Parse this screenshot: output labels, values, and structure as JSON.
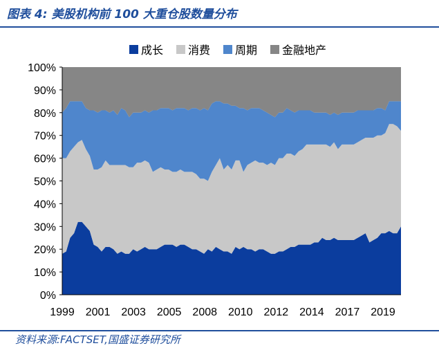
{
  "header": {
    "title": "图表 4:  美股机构前 100 大重仓股数量分布"
  },
  "footer": {
    "source": "资料来源:FACTSET,国盛证券研究所"
  },
  "colors": {
    "growth": "#0b3d9e",
    "consumer": "#c8c8c8",
    "cyclical": "#4f86cc",
    "financial_realestate": "#868686",
    "accent": "#1f4e9c"
  },
  "chart_data": {
    "type": "area",
    "stacked": true,
    "normalized": true,
    "x_tick_labels": [
      "1999",
      "2001",
      "2003",
      "2005",
      "2008",
      "2010",
      "2012",
      "2014",
      "2017",
      "2019"
    ],
    "y_tick_labels": [
      "0%",
      "10%",
      "20%",
      "30%",
      "40%",
      "50%",
      "60%",
      "70%",
      "80%",
      "90%",
      "100%"
    ],
    "ylim": [
      0,
      100
    ],
    "legend_position": "top",
    "series": [
      {
        "name": "成长",
        "color_key": "growth",
        "values": [
          18,
          19,
          25,
          27,
          32,
          32,
          30,
          28,
          22,
          21,
          19,
          21,
          21,
          20,
          18,
          19,
          18,
          18,
          20,
          19,
          20,
          21,
          20,
          20,
          20,
          21,
          22,
          22,
          22,
          21,
          22,
          22,
          21,
          20,
          20,
          19,
          18,
          20,
          19,
          21,
          20,
          19,
          19,
          18,
          21,
          20,
          21,
          20,
          20,
          19,
          20,
          20,
          19,
          18,
          18,
          19,
          19,
          20,
          21,
          21,
          22,
          22,
          22,
          22,
          23,
          23,
          25,
          24,
          24,
          25,
          24,
          24,
          24,
          24,
          24,
          25,
          26,
          27,
          23,
          24,
          25,
          27,
          27,
          28,
          27,
          27,
          30
        ]
      },
      {
        "name": "消费",
        "color_key": "consumer",
        "values": [
          42,
          41,
          38,
          38,
          35,
          36,
          34,
          33,
          33,
          34,
          37,
          38,
          36,
          37,
          39,
          38,
          39,
          38,
          36,
          39,
          38,
          38,
          38,
          34,
          35,
          35,
          33,
          33,
          32,
          33,
          33,
          32,
          33,
          34,
          33,
          32,
          33,
          30,
          35,
          36,
          40,
          36,
          38,
          37,
          38,
          39,
          33,
          37,
          38,
          40,
          38,
          38,
          38,
          40,
          39,
          41,
          41,
          42,
          41,
          40,
          41,
          42,
          44,
          44,
          43,
          43,
          41,
          42,
          41,
          42,
          40,
          42,
          42,
          42,
          42,
          42,
          42,
          42,
          46,
          45,
          45,
          43,
          44,
          47,
          48,
          47,
          42
        ]
      },
      {
        "name": "周期",
        "color_key": "cyclical",
        "values": [
          20,
          22,
          22,
          20,
          18,
          17,
          18,
          20,
          26,
          25,
          25,
          22,
          23,
          24,
          22,
          25,
          24,
          22,
          24,
          22,
          22,
          22,
          22,
          27,
          26,
          26,
          27,
          27,
          27,
          28,
          27,
          28,
          27,
          28,
          29,
          30,
          31,
          31,
          30,
          28,
          25,
          29,
          27,
          28,
          24,
          23,
          28,
          24,
          24,
          23,
          24,
          23,
          23,
          21,
          21,
          20,
          20,
          20,
          19,
          19,
          18,
          17,
          15,
          15,
          14,
          14,
          14,
          14,
          14,
          13,
          15,
          14,
          14,
          14,
          14,
          14,
          13,
          12,
          12,
          12,
          12,
          12,
          10,
          10,
          10,
          11,
          13
        ]
      },
      {
        "name": "金融地产",
        "color_key": "financial_realestate",
        "values": [
          20,
          18,
          15,
          15,
          15,
          15,
          18,
          19,
          19,
          20,
          19,
          19,
          20,
          19,
          21,
          18,
          19,
          22,
          20,
          20,
          20,
          19,
          20,
          19,
          19,
          18,
          18,
          18,
          19,
          18,
          18,
          18,
          19,
          18,
          18,
          19,
          18,
          19,
          16,
          15,
          15,
          16,
          16,
          17,
          17,
          18,
          18,
          19,
          18,
          18,
          18,
          19,
          20,
          21,
          22,
          20,
          20,
          18,
          19,
          20,
          19,
          19,
          19,
          19,
          20,
          20,
          20,
          20,
          21,
          20,
          21,
          20,
          20,
          20,
          20,
          19,
          19,
          19,
          19,
          19,
          18,
          18,
          19,
          15,
          15,
          15,
          15
        ]
      }
    ]
  }
}
